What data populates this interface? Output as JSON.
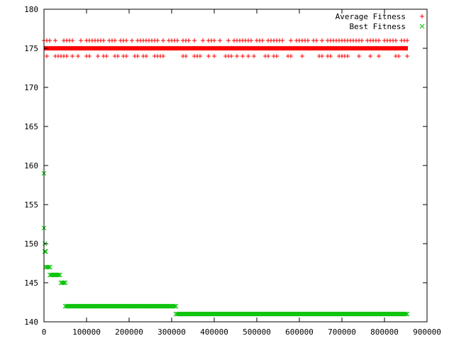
{
  "chart_data": {
    "type": "scatter",
    "xlim": [
      0,
      900000
    ],
    "ylim": [
      140,
      180
    ],
    "xticks": [
      0,
      100000,
      200000,
      300000,
      400000,
      500000,
      600000,
      700000,
      800000,
      900000
    ],
    "yticks": [
      140,
      145,
      150,
      155,
      160,
      165,
      170,
      175,
      180
    ],
    "xtick_labels": [
      "0",
      "100000",
      "200000",
      "300000",
      "400000",
      "500000",
      "600000",
      "700000",
      "800000",
      "900000"
    ],
    "ytick_labels": [
      "140",
      "145",
      "150",
      "155",
      "160",
      "165",
      "170",
      "175",
      "180"
    ],
    "grid": false,
    "legend_position": "top-right",
    "legend": [
      "Average Fitness",
      "Best Fitness"
    ],
    "series": [
      {
        "name": "Average Fitness",
        "marker": "+",
        "color": "#ff0000",
        "points_note_free": true,
        "bands": [
          {
            "y": 176,
            "x_range": [
              0,
              855000
            ]
          },
          {
            "y": 175,
            "x_range": [
              0,
              855000
            ]
          },
          {
            "y": 174,
            "x_range": [
              0,
              855000
            ]
          }
        ]
      },
      {
        "name": "Best Fitness",
        "marker": "x",
        "color": "#00c000",
        "points": [
          {
            "x": 0,
            "y": 159
          },
          {
            "x": 0,
            "y": 152
          },
          {
            "x": 2000,
            "y": 150
          },
          {
            "x": 2000,
            "y": 149
          },
          {
            "x": 4000,
            "y": 149
          }
        ],
        "segments": [
          {
            "y": 147,
            "x_range": [
              4000,
              14000
            ]
          },
          {
            "y": 146,
            "x_range": [
              14000,
              40000
            ]
          },
          {
            "y": 145,
            "x_range": [
              40000,
              50000
            ]
          },
          {
            "y": 142,
            "x_range": [
              50000,
              310000
            ]
          },
          {
            "y": 141,
            "x_range": [
              310000,
              855000
            ]
          }
        ]
      }
    ]
  }
}
